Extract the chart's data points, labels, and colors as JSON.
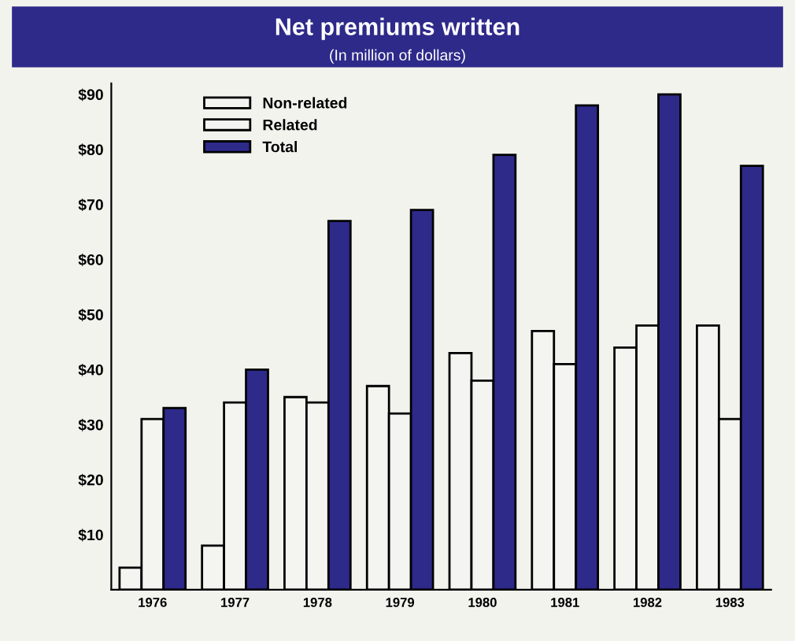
{
  "chart_data": {
    "type": "bar",
    "title": "Net premiums written",
    "subtitle": "(In million of dollars)",
    "categories": [
      "1976",
      "1977",
      "1978",
      "1979",
      "1980",
      "1981",
      "1982",
      "1983"
    ],
    "series": [
      {
        "name": "Non-related",
        "color": "#f4f4f0",
        "values": [
          4,
          8,
          35,
          37,
          43,
          47,
          44,
          48
        ]
      },
      {
        "name": "Related",
        "color": "#f4f4f0",
        "values": [
          31,
          34,
          34,
          32,
          38,
          41,
          48,
          31
        ]
      },
      {
        "name": "Total",
        "color": "#2e2a8a",
        "values": [
          33,
          40,
          67,
          69,
          79,
          88,
          90,
          77
        ]
      }
    ],
    "ylim": [
      0,
      92
    ],
    "yticks": [
      {
        "value": 10,
        "label": "$10"
      },
      {
        "value": 20,
        "label": "$20"
      },
      {
        "value": 30,
        "label": "$30"
      },
      {
        "value": 40,
        "label": "$40"
      },
      {
        "value": 50,
        "label": "$50"
      },
      {
        "value": 60,
        "label": "$60"
      },
      {
        "value": 70,
        "label": "$70"
      },
      {
        "value": 80,
        "label": "$80"
      },
      {
        "value": 90,
        "label": "$90"
      }
    ],
    "grid": false,
    "legend": "top left"
  }
}
